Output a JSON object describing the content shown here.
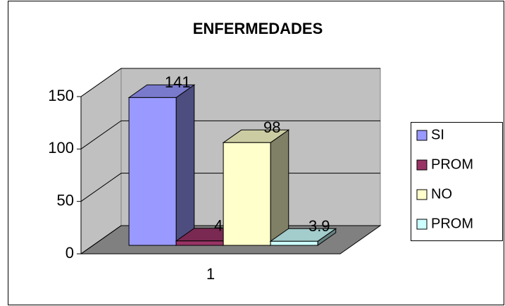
{
  "chart_data": {
    "type": "bar3d",
    "title": "ENFERMEDADES",
    "categories": [
      "1"
    ],
    "series": [
      {
        "name": "SI",
        "color": "#9999ff",
        "values": [
          141
        ]
      },
      {
        "name": "PROM",
        "color": "#993366",
        "values": [
          4.2
        ]
      },
      {
        "name": "NO",
        "color": "#ffffcc",
        "values": [
          98
        ]
      },
      {
        "name": "PROM",
        "color": "#ccffff",
        "values": [
          3.9
        ]
      }
    ],
    "ylim": [
      0,
      150
    ],
    "yticks": [
      0,
      50,
      100,
      150
    ],
    "grid": true,
    "legend": "right"
  }
}
